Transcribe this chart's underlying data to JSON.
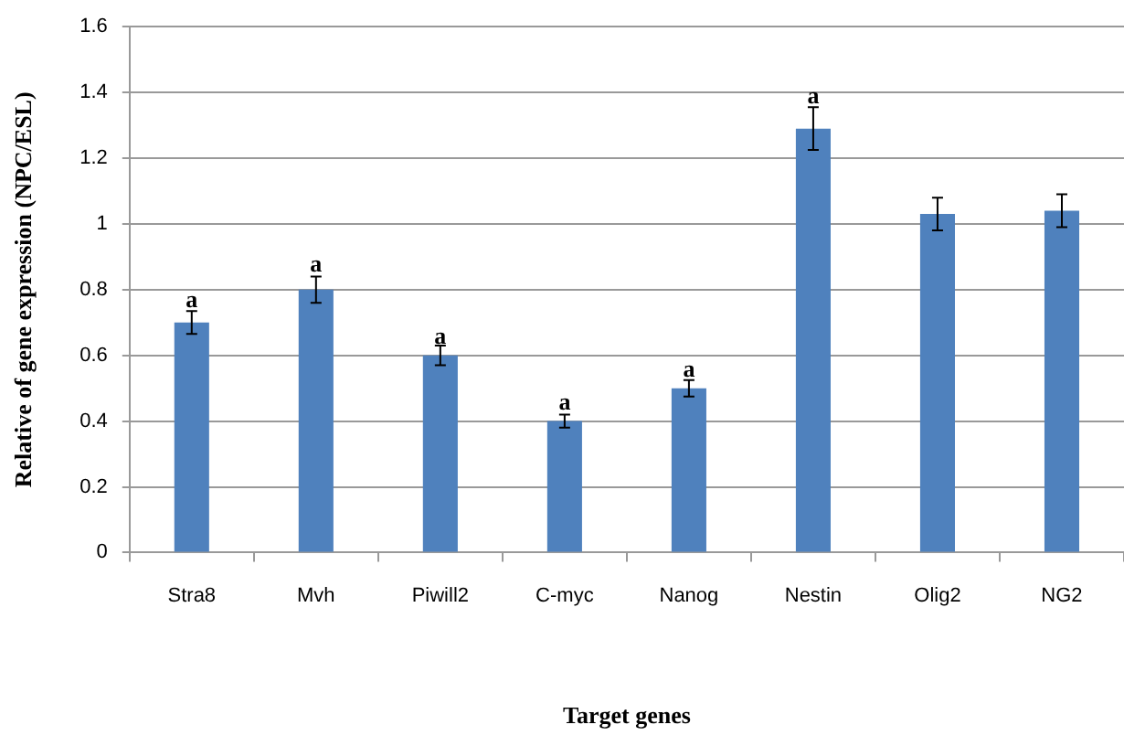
{
  "chart_data": {
    "type": "bar",
    "xlabel": "Target genes",
    "ylabel": "Relative of gene expression (NPC/ESL)",
    "categories": [
      "Stra8",
      "Mvh",
      "Piwill2",
      "C-myc",
      "Nanog",
      "Nestin",
      "Olig2",
      "NG2"
    ],
    "values": [
      0.7,
      0.8,
      0.6,
      0.4,
      0.5,
      1.29,
      1.03,
      1.04
    ],
    "errors": [
      0.035,
      0.04,
      0.03,
      0.02,
      0.025,
      0.065,
      0.05,
      0.05
    ],
    "color": "#4f81bd",
    "ylim": [
      0,
      1.6
    ],
    "yticks": [
      0,
      {
        "value": 0.2,
        "label": "0.2"
      },
      {
        "value": 0.4,
        "label": "0.4"
      },
      {
        "value": 0.6,
        "label": "0.6"
      },
      {
        "value": 0.8,
        "label": "0.8"
      },
      1,
      {
        "value": 1.2,
        "label": "1.2"
      },
      {
        "value": 1.4,
        "label": "1.4"
      },
      {
        "value": 1.6,
        "label": "1.6"
      }
    ],
    "grid": "y",
    "legend": false,
    "annotations": [
      {
        "text": "a",
        "x": "Stra8",
        "y": 0.74
      },
      {
        "text": "a",
        "x": "Mvh",
        "y": 0.85
      },
      {
        "text": "a",
        "x": "Piwill2",
        "y": 0.63
      },
      {
        "text": "a",
        "x": "C-myc",
        "y": 0.43
      },
      {
        "text": "a",
        "x": "Nanog",
        "y": 0.53
      },
      {
        "text": "a",
        "x": "Nestin",
        "y": 1.36
      }
    ]
  }
}
